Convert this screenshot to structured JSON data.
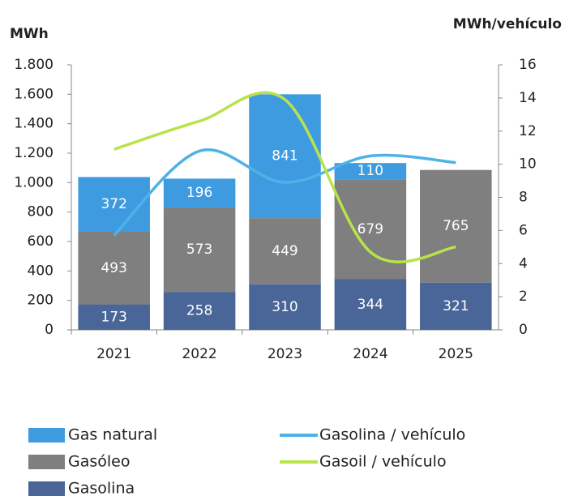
{
  "chart_data": {
    "type": "bar",
    "y_label": "MWh",
    "y2_label": "MWh/vehículo",
    "categories": [
      "2021",
      "2022",
      "2023",
      "2024",
      "2025"
    ],
    "series": [
      {
        "name": "Gasolina",
        "color": "#4a6597",
        "values": [
          173,
          258,
          310,
          344,
          321
        ]
      },
      {
        "name": "Gasóleo",
        "color": "#7f7f7f",
        "values": [
          493,
          573,
          449,
          679,
          765
        ]
      },
      {
        "name": "Gas natural",
        "color": "#3f9be0",
        "values": [
          372,
          196,
          841,
          110,
          null
        ]
      },
      {
        "name": "Gasolina / vehículo",
        "color": "#4db3e6",
        "type": "line",
        "axis": "y2",
        "values": [
          5.7,
          10.8,
          8.9,
          10.5,
          10.1
        ]
      },
      {
        "name": "Gasoil / vehículo",
        "color": "#b8e34a",
        "type": "line",
        "axis": "y2",
        "values": [
          10.9,
          12.6,
          13.9,
          4.7,
          5.0
        ]
      }
    ],
    "ylim": [
      0,
      1800
    ],
    "yticks": [
      0,
      200,
      400,
      600,
      800,
      {
        "value": 1000,
        "label": "1.000"
      },
      {
        "value": 1200,
        "label": "1.200"
      },
      {
        "value": 1400,
        "label": "1.400"
      },
      {
        "value": 1600,
        "label": "1.600"
      },
      {
        "value": 1800,
        "label": "1.800"
      }
    ],
    "y2lim": [
      0,
      16
    ],
    "y2ticks": [
      0,
      2,
      4,
      6,
      8,
      10,
      12,
      14,
      16
    ]
  }
}
